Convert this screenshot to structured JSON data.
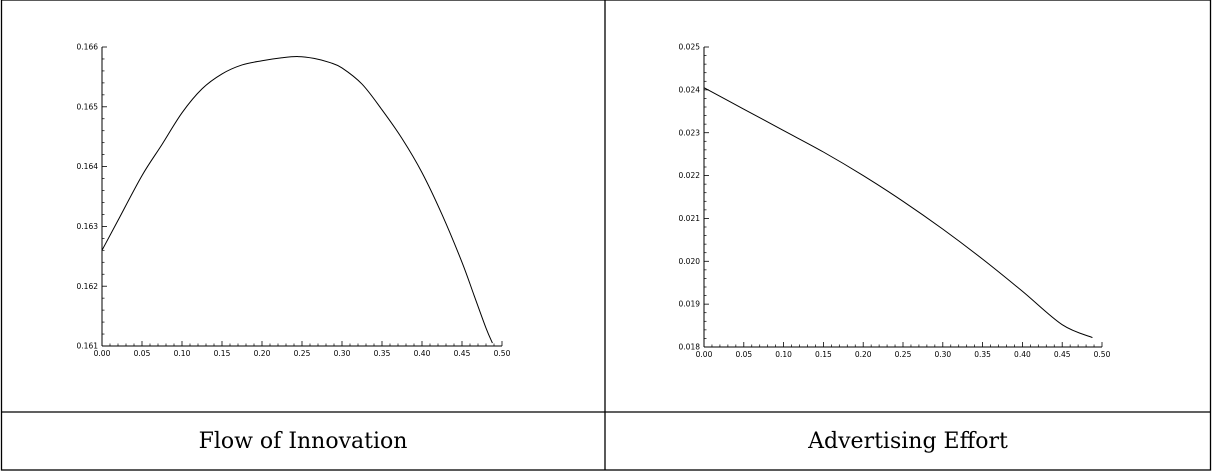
{
  "captions": {
    "left": "Flow of Innovation",
    "right": "Advertising Effort"
  },
  "style": {
    "line_color": "#000000",
    "border_color": "#000000",
    "background": "#ffffff"
  },
  "chart_data": [
    {
      "type": "line",
      "title": "",
      "xlabel": "",
      "ylabel": "",
      "xlim": [
        0,
        0.5
      ],
      "ylim": [
        0.161,
        0.166
      ],
      "x_ticks": [
        "0.00",
        "0.05",
        "0.10",
        "0.15",
        "0.20",
        "0.25",
        "0.30",
        "0.35",
        "0.40",
        "0.45",
        "0.50"
      ],
      "y_ticks": [
        "0.161",
        "0.162",
        "0.163",
        "0.164",
        "0.165",
        "0.166"
      ],
      "grid": false,
      "series": [
        {
          "x": [
            0.0,
            0.02,
            0.05,
            0.075,
            0.1,
            0.125,
            0.15,
            0.175,
            0.2,
            0.225,
            0.245,
            0.265,
            0.285,
            0.3,
            0.325,
            0.35,
            0.375,
            0.4,
            0.425,
            0.45,
            0.465,
            0.48,
            0.488
          ],
          "y": [
            0.1626,
            0.1631,
            0.16385,
            0.16437,
            0.1649,
            0.1653,
            0.16555,
            0.1657,
            0.16577,
            0.16582,
            0.16584,
            0.16581,
            0.16574,
            0.16565,
            0.16538,
            0.16495,
            0.16447,
            0.1639,
            0.1632,
            0.1624,
            0.16185,
            0.1613,
            0.16105
          ]
        }
      ]
    },
    {
      "type": "line",
      "title": "",
      "xlabel": "",
      "ylabel": "",
      "xlim": [
        0,
        0.5
      ],
      "ylim": [
        0.018,
        0.025
      ],
      "x_ticks": [
        "0.00",
        "0.05",
        "0.10",
        "0.15",
        "0.20",
        "0.25",
        "0.30",
        "0.35",
        "0.40",
        "0.45",
        "0.50"
      ],
      "y_ticks": [
        "0.018",
        "0.019",
        "0.020",
        "0.021",
        "0.022",
        "0.023",
        "0.024",
        "0.025"
      ],
      "grid": false,
      "series": [
        {
          "x": [
            0.0,
            0.05,
            0.1,
            0.15,
            0.2,
            0.25,
            0.3,
            0.35,
            0.4,
            0.45,
            0.488
          ],
          "y": [
            0.02405,
            0.02355,
            0.02305,
            0.02255,
            0.022,
            0.0214,
            0.02075,
            0.02005,
            0.0193,
            0.01852,
            0.01822
          ]
        }
      ]
    }
  ]
}
